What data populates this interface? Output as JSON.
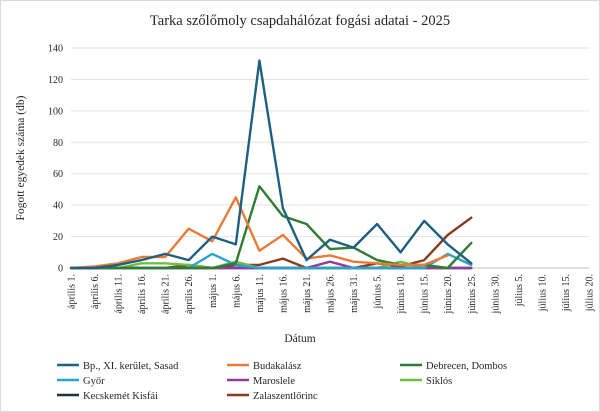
{
  "chart_data": {
    "type": "line",
    "title": "Tarka szőlőmoly csapdahálózat fogási adatai - 2025",
    "xlabel": "Dátum",
    "ylabel": "Fogott egyedek száma (db)",
    "ylim": [
      0,
      140
    ],
    "yticks": [
      0,
      20,
      40,
      60,
      80,
      100,
      120,
      140
    ],
    "grid": true,
    "legend_position": "bottom",
    "categories": [
      "április 1.",
      "április 6.",
      "április 11.",
      "április 16.",
      "április 21.",
      "április 26.",
      "május 1.",
      "május 6.",
      "május 11.",
      "május 16.",
      "május 21.",
      "május 26.",
      "május 31.",
      "június 5.",
      "június 10.",
      "június 15.",
      "június 20.",
      "június 25.",
      "június 30.",
      "július 5.",
      "július 10.",
      "július 15.",
      "július 20."
    ],
    "series": [
      {
        "name": "Bp., XI. kerület, Sasad",
        "color": "#1f5f7f",
        "values": [
          0,
          0,
          2,
          5,
          9,
          5,
          20,
          15,
          132,
          38,
          5,
          18,
          13,
          28,
          10,
          30,
          15,
          3,
          null,
          null,
          null,
          null,
          null
        ]
      },
      {
        "name": "Budakalász",
        "color": "#e97b39",
        "values": [
          0,
          1,
          3,
          7,
          7,
          25,
          17,
          45,
          11,
          21,
          6,
          8,
          4,
          3,
          2,
          2,
          8,
          null,
          null,
          null,
          null,
          null,
          null
        ]
      },
      {
        "name": "Debrecen, Dombos",
        "color": "#2e7d32",
        "values": [
          0,
          0,
          0,
          0,
          0,
          0,
          0,
          3,
          52,
          33,
          28,
          12,
          13,
          5,
          2,
          2,
          0,
          16,
          null,
          null,
          null,
          null,
          null
        ]
      },
      {
        "name": "Győr",
        "color": "#29a3cc",
        "values": [
          0,
          0,
          0,
          0,
          0,
          0,
          9,
          2,
          0,
          0,
          0,
          0,
          0,
          0,
          0,
          0,
          9,
          2,
          null,
          null,
          null,
          null,
          null
        ]
      },
      {
        "name": "Maroslele",
        "color": "#8e3c9e",
        "values": [
          0,
          0,
          0,
          0,
          0,
          0,
          0,
          0,
          0,
          0,
          0,
          4,
          0,
          0,
          0,
          0,
          0,
          0,
          null,
          null,
          null,
          null,
          null
        ]
      },
      {
        "name": "Siklós",
        "color": "#6fbf40",
        "values": [
          0,
          0,
          0,
          3,
          3,
          2,
          0,
          4,
          0,
          0,
          0,
          0,
          0,
          0,
          4,
          0,
          0,
          0,
          null,
          null,
          null,
          null,
          null
        ]
      },
      {
        "name": "Kecskemét Kisfái",
        "color": "#173247",
        "values": [
          0,
          0,
          0,
          0,
          0,
          0,
          0,
          0,
          0,
          0,
          0,
          0,
          0,
          0,
          0,
          0,
          0,
          0,
          null,
          null,
          null,
          null,
          null
        ]
      },
      {
        "name": "Zalaszentlőrinc",
        "color": "#8a3b1c",
        "values": [
          0,
          0,
          0,
          0,
          0,
          2,
          0,
          2,
          2,
          6,
          0,
          0,
          0,
          3,
          1,
          5,
          21,
          32,
          null,
          null,
          null,
          null,
          null
        ]
      }
    ]
  }
}
